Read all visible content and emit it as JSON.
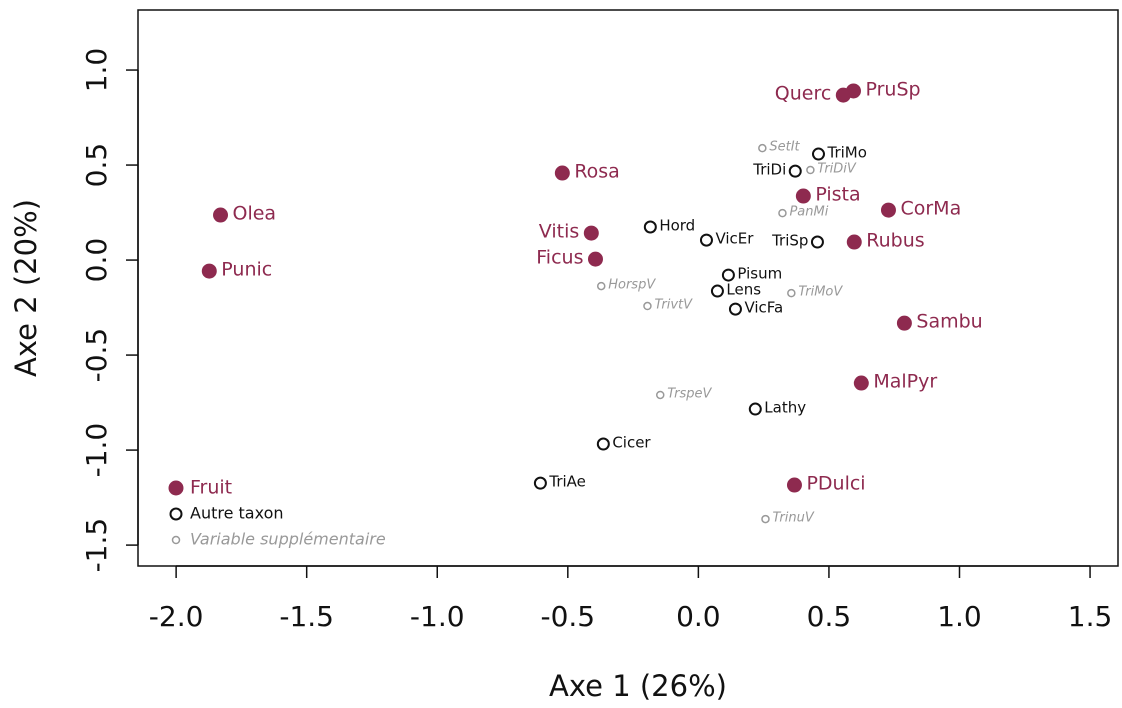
{
  "chart_data": {
    "type": "scatter",
    "x_label": "Axe 1 (26%)",
    "y_label": "Axe 2 (20%)",
    "xlim": [
      -2.146,
      1.607
    ],
    "ylim": [
      -1.61,
      1.316
    ],
    "xticks": [
      {
        "value": -2,
        "label": "-2.0"
      },
      -1.5,
      {
        "value": -1,
        "label": "-1.0"
      },
      -0.5,
      {
        "value": 0,
        "label": "0.0"
      },
      0.5,
      {
        "value": 1,
        "label": "1.0"
      },
      1.5
    ],
    "yticks": [
      -1.5,
      {
        "value": -1,
        "label": "-1.0"
      },
      -0.5,
      {
        "value": 0,
        "label": "0.0"
      },
      0.5,
      {
        "value": 1,
        "label": "1.0"
      }
    ],
    "legend": "bottom left",
    "series": [
      {
        "name": "Fruit",
        "color": "#8e2a4f",
        "marker": "filled",
        "labels": [
          "PruSp",
          "Querc",
          "Rosa",
          "Olea",
          "Punic",
          "Vitis",
          "Ficus",
          "Pista",
          "CorMa",
          "Rubus",
          "Sambu",
          "MalPyr",
          "PDulci"
        ],
        "x": [
          0.594,
          0.555,
          -0.521,
          -1.83,
          -1.873,
          -0.41,
          -0.394,
          0.402,
          0.728,
          0.597,
          0.789,
          0.624,
          0.368
        ],
        "y": [
          0.89,
          0.868,
          0.458,
          0.237,
          -0.058,
          0.142,
          0.005,
          0.337,
          0.263,
          0.095,
          -0.332,
          -0.647,
          -1.184
        ]
      },
      {
        "name": "Autre taxon",
        "color": "#111111",
        "marker": "open",
        "labels": [
          "TriMo",
          "TriDi",
          "Hord",
          "VicEr",
          "TriSp",
          "Pisum",
          "Lens",
          "VicFa",
          "Lathy",
          "Cicer",
          "TriAe"
        ],
        "x": [
          0.46,
          0.371,
          -0.184,
          0.031,
          0.456,
          0.115,
          0.073,
          0.142,
          0.218,
          -0.364,
          -0.605
        ],
        "y": [
          0.558,
          0.468,
          0.174,
          0.105,
          0.095,
          -0.079,
          -0.163,
          -0.258,
          -0.784,
          -0.968,
          -1.174
        ]
      },
      {
        "name": "Variable supplémentaire",
        "color": "#999999",
        "marker": "small",
        "labels": [
          "SetIt",
          "TriDiV",
          "PanMi",
          "HorspV",
          "TrivtV",
          "TriMoV",
          "TrspeV",
          "TrinuV"
        ],
        "x": [
          0.245,
          0.429,
          0.322,
          -0.372,
          -0.195,
          0.356,
          -0.146,
          0.257
        ],
        "y": [
          0.589,
          0.474,
          0.247,
          -0.137,
          -0.242,
          -0.174,
          -0.71,
          -1.363
        ]
      }
    ]
  }
}
